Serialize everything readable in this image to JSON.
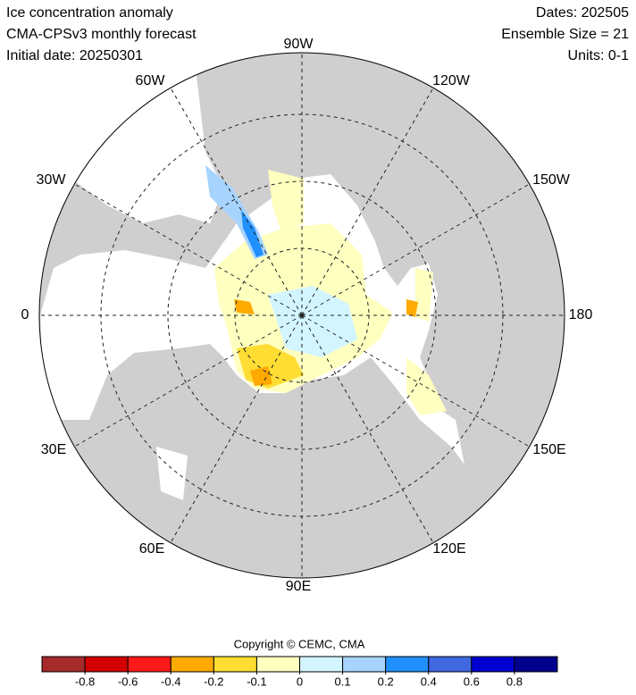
{
  "header": {
    "left": [
      "Ice concentration anomaly",
      "CMA-CPSv3 monthly forecast",
      "Initial date: 20250301"
    ],
    "right": [
      "Dates: 202505",
      "Ensemble Size = 21",
      "Units: 0-1"
    ]
  },
  "map": {
    "longitude_labels": [
      "90W",
      "120W",
      "150W",
      "180",
      "150E",
      "120E",
      "90E",
      "60E",
      "30E",
      "0",
      "30W",
      "60W"
    ]
  },
  "copyright": "Copyright © CEMC, CMA",
  "colorbar": {
    "colors": [
      "#a52a2a",
      "#d20000",
      "#ff1a1a",
      "#ffaa00",
      "#ffdd33",
      "#ffffc0",
      "#d2f5ff",
      "#a6d4ff",
      "#2090ff",
      "#4068e0",
      "#0000d0",
      "#00008c"
    ],
    "ticks": [
      -0.8,
      -0.6,
      -0.4,
      -0.2,
      -0.1,
      0,
      0.1,
      0.2,
      0.4,
      0.6,
      0.8
    ]
  }
}
